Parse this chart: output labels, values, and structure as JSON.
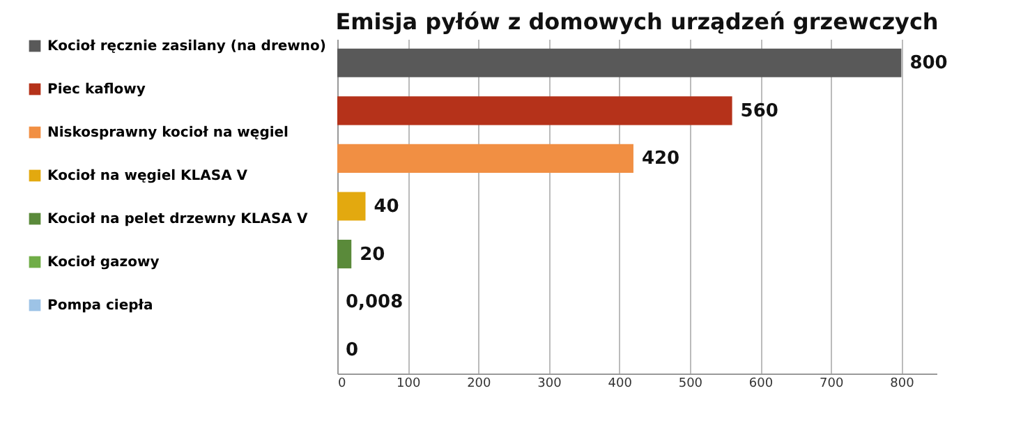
{
  "chart_data": {
    "type": "bar",
    "orientation": "horizontal",
    "title": "Emisja pyłów z domowych urządzeń grzewczych",
    "categories": [
      null,
      null,
      null,
      null,
      null,
      null,
      null
    ],
    "series": [
      {
        "name": "Kocioł ręcznie zasilany (na drewno)",
        "color": "#595959",
        "values": [
          800,
          null,
          null,
          null,
          null,
          null,
          null
        ],
        "value_labels": [
          "800",
          null,
          null,
          null,
          null,
          null,
          null
        ]
      },
      {
        "name": "Piec kaflowy",
        "color": "#b5321a",
        "values": [
          null,
          560,
          null,
          null,
          null,
          null,
          null
        ],
        "value_labels": [
          null,
          "560",
          null,
          null,
          null,
          null,
          null
        ]
      },
      {
        "name": "Niskosprawny kocioł na węgiel",
        "color": "#f18f43",
        "values": [
          null,
          null,
          420,
          null,
          null,
          null,
          null
        ],
        "value_labels": [
          null,
          null,
          "420",
          null,
          null,
          null,
          null
        ]
      },
      {
        "name": "Kocioł na węgiel KLASA V",
        "color": "#e3a90f",
        "values": [
          null,
          null,
          null,
          40,
          null,
          null,
          null
        ],
        "value_labels": [
          null,
          null,
          null,
          "40",
          null,
          null,
          null
        ]
      },
      {
        "name": "Kocioł na pelet drzewny KLASA V",
        "color": "#5a8a3a",
        "values": [
          null,
          null,
          null,
          null,
          20,
          null,
          null
        ],
        "value_labels": [
          null,
          null,
          null,
          null,
          "20",
          null,
          null
        ]
      },
      {
        "name": "Kocioł gazowy",
        "color": "#70ad47",
        "values": [
          null,
          null,
          null,
          null,
          null,
          0.008,
          null
        ],
        "value_labels": [
          null,
          null,
          null,
          null,
          null,
          "0,008",
          null
        ]
      },
      {
        "name": "Pompa ciepła",
        "color": "#9dc3e6",
        "values": [
          null,
          null,
          null,
          null,
          null,
          null,
          0
        ],
        "value_labels": [
          null,
          null,
          null,
          null,
          null,
          null,
          "0"
        ]
      }
    ],
    "xlim": [
      0,
      850
    ],
    "xticks": [
      0,
      100,
      200,
      300,
      400,
      500,
      600,
      700,
      800
    ],
    "grid": "x",
    "legend": "left",
    "tick_labels": "x"
  }
}
